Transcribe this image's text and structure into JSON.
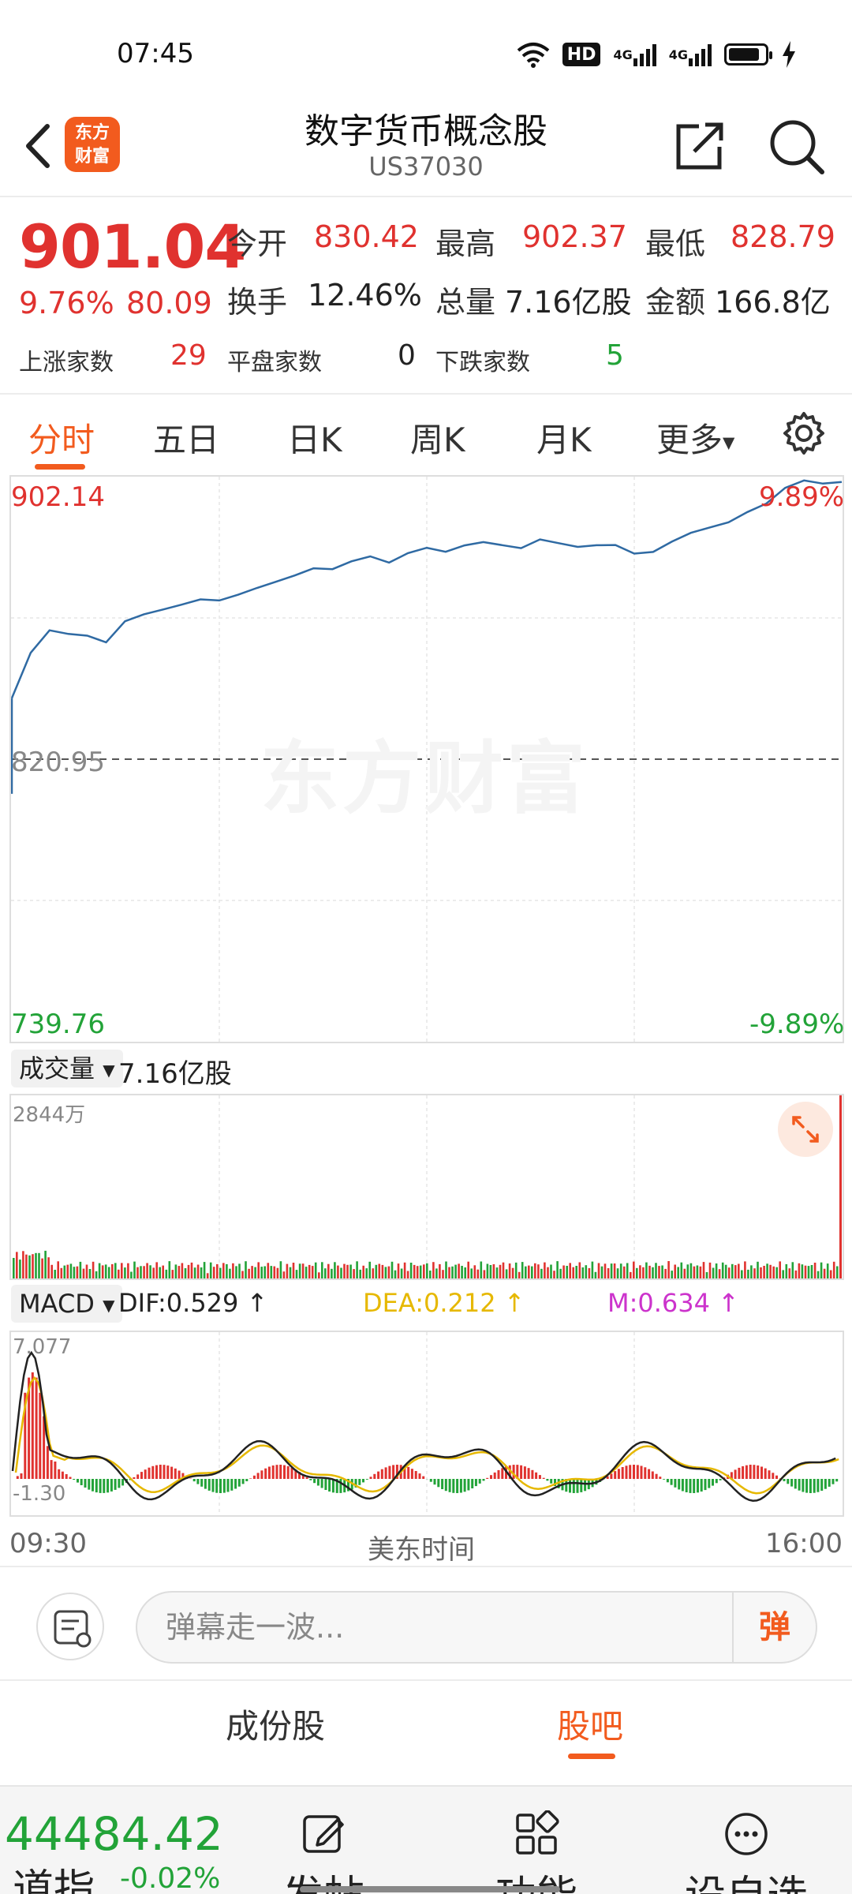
{
  "status_bar": {
    "time": "07:45",
    "icons": [
      "wifi-icon",
      "hd-icon",
      "signal-4g-icon",
      "signal-4g-icon",
      "battery-icon",
      "charging-icon"
    ],
    "hd_label": "HD",
    "net1": "4G",
    "net2": "4G"
  },
  "header": {
    "title": "数字货币概念股",
    "code": "US37030",
    "logo_text_line1": "东方",
    "logo_text_line2": "财富"
  },
  "quote": {
    "price": "901.04",
    "change_pct": "9.76%",
    "change_val": "80.09",
    "open_label": "今开",
    "open": "830.42",
    "high_label": "最高",
    "high": "902.37",
    "low_label": "最低",
    "low": "828.79",
    "turnover_label": "换手",
    "turnover": "12.46%",
    "volume_label": "总量",
    "volume": "7.16亿股",
    "amount_label": "金额",
    "amount": "166.8亿",
    "up_label": "上涨家数",
    "up": "29",
    "flat_label": "平盘家数",
    "flat": "0",
    "down_label": "下跌家数",
    "down": "5"
  },
  "tabs": [
    {
      "label": "分时"
    },
    {
      "label": "五日"
    },
    {
      "label": "日K"
    },
    {
      "label": "周K"
    },
    {
      "label": "月K"
    },
    {
      "label": "更多"
    }
  ],
  "chart": {
    "top_price": "902.14",
    "top_pct": "9.89%",
    "mid_price": "820.95",
    "bottom_price": "739.76",
    "bottom_pct": "-9.89%",
    "watermark": "东方财富"
  },
  "volume": {
    "selector": "成交量",
    "total": "7.16亿股",
    "max_label": "2844万"
  },
  "macd": {
    "selector": "MACD",
    "dif": "DIF:0.529",
    "dea": "DEA:0.212",
    "m": "M:0.634",
    "top_label": "7.077",
    "bottom_label": "-1.30",
    "colors": {
      "dif": "#222222",
      "dea": "#e6b800",
      "m": "#cc33cc"
    }
  },
  "time_axis": {
    "start": "09:30",
    "middle": "美东时间",
    "end": "16:00"
  },
  "danmaku": {
    "placeholder": "弹幕走一波...",
    "button": "弹"
  },
  "subtabs": [
    {
      "label": "成份股"
    },
    {
      "label": "股吧"
    }
  ],
  "bottom": {
    "index_value": "44484.42",
    "index_name": "道指",
    "index_pct": "-0.02%",
    "nav": [
      {
        "label": "发帖"
      },
      {
        "label": "功能"
      },
      {
        "label": "设自选"
      }
    ]
  },
  "chart_data": {
    "type": "line",
    "title": "",
    "xlabel": "美东时间",
    "ylabel": "",
    "x_range": [
      "09:30",
      "16:00"
    ],
    "ylim": [
      739.76,
      902.14
    ],
    "reference_line": 820.95,
    "series": [
      {
        "values": [
          838.5,
          852.0,
          858.5,
          857.0,
          856.0,
          854.0,
          860.5,
          863.0,
          864.5,
          865.5,
          866.5,
          866.0,
          868.0,
          870.5,
          872.5,
          874.0,
          875.5,
          875.0,
          877.5,
          879.5,
          878.0,
          880.5,
          881.5,
          880.0,
          882.0,
          883.5,
          883.0,
          882.0,
          884.0,
          882.5,
          881.5,
          882.5,
          883.0,
          880.5,
          880.5,
          883.0,
          885.5,
          887.5,
          889.5,
          892.5,
          894.5,
          898.5,
          900.5,
          900.0,
          901.0
        ]
      }
    ]
  }
}
